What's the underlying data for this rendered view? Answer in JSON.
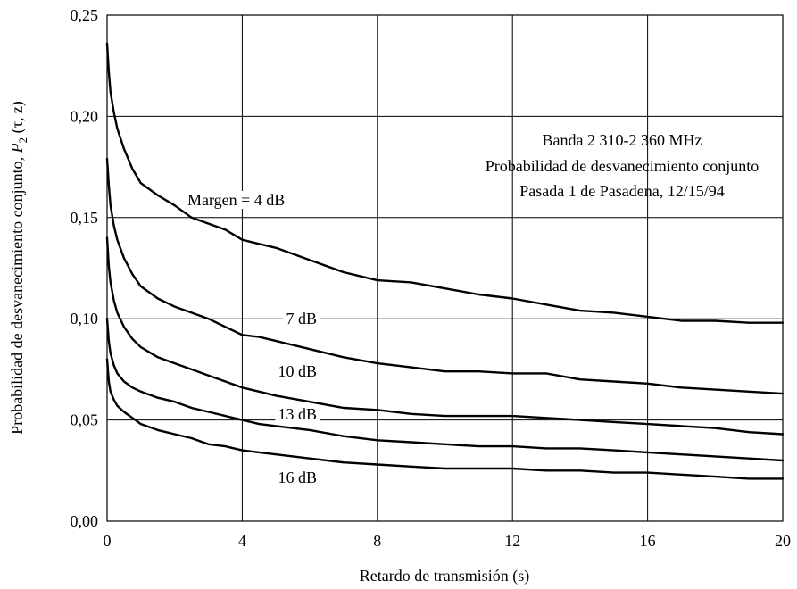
{
  "chart_data": {
    "type": "line",
    "xlabel": "Retardo de transmisión (s)",
    "ylabel": {
      "prefix": "Probabilidad de desvanecimiento conjunto, ",
      "symbol": "P",
      "subscript": "2",
      "suffix": " (τ, z)"
    },
    "xlim": [
      0,
      20
    ],
    "ylim": [
      0,
      0.25
    ],
    "grid": true,
    "x_ticks": [
      0,
      4,
      8,
      12,
      16,
      20
    ],
    "x_tick_labels": [
      "0",
      "4",
      "8",
      "12",
      "16",
      "20"
    ],
    "y_ticks": [
      0,
      0.05,
      0.1,
      0.15,
      0.2,
      0.25
    ],
    "y_tick_labels": [
      "0,00",
      "0,05",
      "0,10",
      "0,15",
      "0,20",
      "0,25"
    ],
    "annotation": [
      "Banda 2 310-2 360 MHz",
      "Probabilidad de desvanecimiento conjunto",
      "Pasada 1 de Pasadena, 12/15/94"
    ],
    "series": [
      {
        "name": "Margen = 4 dB",
        "x": [
          0,
          0.05,
          0.1,
          0.2,
          0.3,
          0.5,
          0.75,
          1,
          1.5,
          2,
          2.5,
          3,
          3.5,
          4,
          4.5,
          5,
          6,
          7,
          8,
          9,
          10,
          11,
          12,
          13,
          14,
          15,
          16,
          17,
          18,
          19,
          20
        ],
        "values": [
          0.236,
          0.222,
          0.212,
          0.202,
          0.194,
          0.184,
          0.174,
          0.167,
          0.161,
          0.156,
          0.15,
          0.147,
          0.144,
          0.139,
          0.137,
          0.135,
          0.129,
          0.123,
          0.119,
          0.118,
          0.115,
          0.112,
          0.11,
          0.107,
          0.104,
          0.103,
          0.101,
          0.099,
          0.099,
          0.098,
          0.098
        ]
      },
      {
        "name": "7 dB",
        "x": [
          0,
          0.05,
          0.1,
          0.2,
          0.3,
          0.5,
          0.75,
          1,
          1.5,
          2,
          2.5,
          3,
          3.5,
          4,
          4.5,
          5,
          6,
          7,
          8,
          9,
          10,
          11,
          12,
          13,
          14,
          15,
          16,
          17,
          18,
          19,
          20
        ],
        "values": [
          0.179,
          0.166,
          0.156,
          0.146,
          0.139,
          0.13,
          0.122,
          0.116,
          0.11,
          0.106,
          0.103,
          0.1,
          0.096,
          0.092,
          0.091,
          0.089,
          0.085,
          0.081,
          0.078,
          0.076,
          0.074,
          0.074,
          0.073,
          0.073,
          0.07,
          0.069,
          0.068,
          0.066,
          0.065,
          0.064,
          0.063
        ]
      },
      {
        "name": "10 dB",
        "x": [
          0,
          0.05,
          0.1,
          0.2,
          0.3,
          0.5,
          0.75,
          1,
          1.5,
          2,
          2.5,
          3,
          3.5,
          4,
          4.5,
          5,
          6,
          7,
          8,
          9,
          10,
          11,
          12,
          13,
          14,
          15,
          16,
          17,
          18,
          19,
          20
        ],
        "values": [
          0.14,
          0.126,
          0.118,
          0.109,
          0.103,
          0.096,
          0.09,
          0.086,
          0.081,
          0.078,
          0.075,
          0.072,
          0.069,
          0.066,
          0.064,
          0.062,
          0.059,
          0.056,
          0.055,
          0.053,
          0.052,
          0.052,
          0.052,
          0.051,
          0.05,
          0.049,
          0.048,
          0.047,
          0.046,
          0.044,
          0.043
        ]
      },
      {
        "name": "13 dB",
        "x": [
          0,
          0.05,
          0.1,
          0.2,
          0.3,
          0.5,
          0.75,
          1,
          1.5,
          2,
          2.5,
          3,
          3.5,
          4,
          4.5,
          5,
          6,
          7,
          8,
          9,
          10,
          11,
          12,
          13,
          14,
          15,
          16,
          17,
          18,
          19,
          20
        ],
        "values": [
          0.1,
          0.089,
          0.083,
          0.077,
          0.073,
          0.069,
          0.066,
          0.064,
          0.061,
          0.059,
          0.056,
          0.054,
          0.052,
          0.05,
          0.048,
          0.047,
          0.045,
          0.042,
          0.04,
          0.039,
          0.038,
          0.037,
          0.037,
          0.036,
          0.036,
          0.035,
          0.034,
          0.033,
          0.032,
          0.031,
          0.03
        ]
      },
      {
        "name": "16 dB",
        "x": [
          0,
          0.05,
          0.1,
          0.2,
          0.3,
          0.5,
          0.75,
          1,
          1.5,
          2,
          2.5,
          3,
          3.5,
          4,
          4.5,
          5,
          6,
          7,
          8,
          9,
          10,
          11,
          12,
          13,
          14,
          15,
          16,
          17,
          18,
          19,
          20
        ],
        "values": [
          0.08,
          0.069,
          0.064,
          0.06,
          0.057,
          0.054,
          0.051,
          0.048,
          0.045,
          0.043,
          0.041,
          0.038,
          0.037,
          0.035,
          0.034,
          0.033,
          0.031,
          0.029,
          0.028,
          0.027,
          0.026,
          0.026,
          0.026,
          0.025,
          0.025,
          0.024,
          0.024,
          0.023,
          0.022,
          0.021,
          0.021
        ]
      }
    ]
  }
}
